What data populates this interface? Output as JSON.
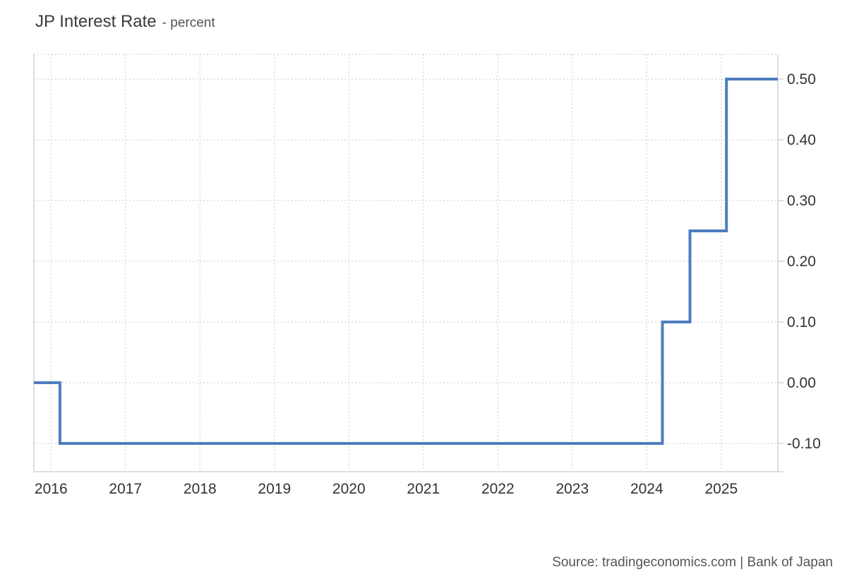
{
  "header": {
    "title": "JP Interest Rate",
    "unit": "- percent"
  },
  "footer": {
    "source": "Source: tradingeconomics.com | Bank of Japan"
  },
  "colors": {
    "line": "#4e7dbf",
    "grid": "#e4e4e4",
    "axis": "#dedede",
    "tick_text": "#333333",
    "title_text": "#3b3b3b",
    "subtitle_text": "#555555",
    "background": "#ffffff"
  },
  "chart_data": {
    "type": "line",
    "subtype": "step-after",
    "title": "JP Interest Rate",
    "xlabel": "",
    "ylabel": "percent",
    "grid": true,
    "legend_position": "none",
    "xlim": [
      2015.77,
      2025.76
    ],
    "ylim": [
      -0.1465,
      0.5407
    ],
    "x_ticks": [
      {
        "value": 2016,
        "label": "2016"
      },
      {
        "value": 2017,
        "label": "2017"
      },
      {
        "value": 2018,
        "label": "2018"
      },
      {
        "value": 2019,
        "label": "2019"
      },
      {
        "value": 2020,
        "label": "2020"
      },
      {
        "value": 2021,
        "label": "2021"
      },
      {
        "value": 2022,
        "label": "2022"
      },
      {
        "value": 2023,
        "label": "2023"
      },
      {
        "value": 2024,
        "label": "2024"
      },
      {
        "value": 2025,
        "label": "2025"
      }
    ],
    "y_ticks": [
      {
        "value": 0.5,
        "label": "0.50"
      },
      {
        "value": 0.4,
        "label": "0.40"
      },
      {
        "value": 0.3,
        "label": "0.30"
      },
      {
        "value": 0.2,
        "label": "0.20"
      },
      {
        "value": 0.1,
        "label": "0.10"
      },
      {
        "value": 0.0,
        "label": "0.00"
      },
      {
        "value": -0.1,
        "label": "-0.10"
      }
    ],
    "series": [
      {
        "name": "JP Interest Rate",
        "color": "#4e7dbf",
        "step": "after",
        "step_points": [
          {
            "x": 2015.77,
            "y": 0.0
          },
          {
            "x": 2016.12,
            "y": -0.1
          },
          {
            "x": 2024.21,
            "y": 0.1
          },
          {
            "x": 2024.58,
            "y": 0.25
          },
          {
            "x": 2025.07,
            "y": 0.5
          },
          {
            "x": 2025.76,
            "y": 0.5
          }
        ]
      }
    ]
  }
}
